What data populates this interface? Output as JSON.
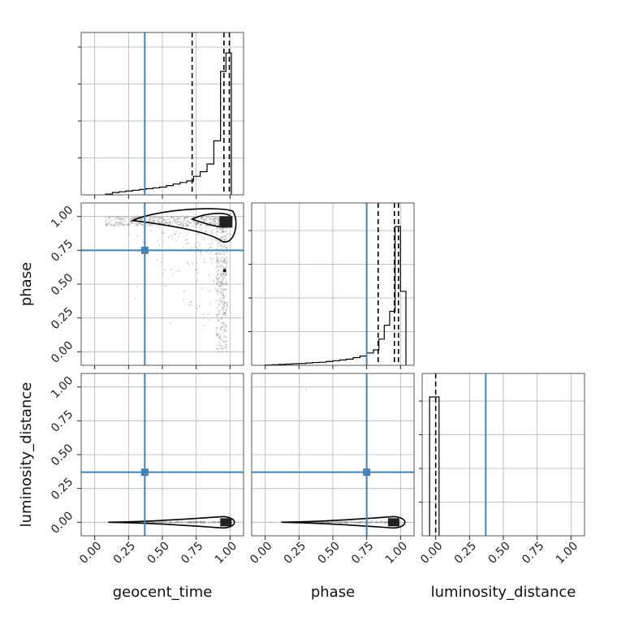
{
  "chart_data": {
    "type": "corner",
    "parameters": [
      "geocent_time",
      "phase",
      "luminosity_distance"
    ],
    "axis_range": [
      -0.1,
      1.1
    ],
    "tick_labels": [
      "0.00",
      "0.25",
      "0.50",
      "0.75",
      "1.00"
    ],
    "tick_values": [
      0,
      0.25,
      0.5,
      0.75,
      1.0
    ],
    "grid": true,
    "truth_color": "#4682b4",
    "hist_color": "#000000",
    "truths": {
      "geocent_time": 0.37,
      "phase": 0.75,
      "luminosity_distance": 0.37
    },
    "quantiles": {
      "geocent_time": [
        0.72,
        0.955,
        0.995
      ],
      "phase": [
        0.835,
        0.955,
        0.985
      ],
      "luminosity_distance": [
        0.0
      ]
    },
    "histograms": {
      "geocent_time": {
        "edges": [
          0.08,
          0.13,
          0.18,
          0.23,
          0.28,
          0.33,
          0.38,
          0.43,
          0.48,
          0.53,
          0.58,
          0.63,
          0.68,
          0.73,
          0.78,
          0.83,
          0.88,
          0.93,
          0.97,
          1.01
        ],
        "counts": [
          0.005,
          0.015,
          0.02,
          0.025,
          0.03,
          0.035,
          0.04,
          0.045,
          0.05,
          0.06,
          0.07,
          0.08,
          0.09,
          0.12,
          0.15,
          0.2,
          0.35,
          0.8,
          0.92
        ],
        "ymax": 1.0
      },
      "phase": {
        "edges": [
          0.0,
          0.05,
          0.1,
          0.15,
          0.2,
          0.25,
          0.3,
          0.35,
          0.4,
          0.45,
          0.5,
          0.55,
          0.6,
          0.65,
          0.7,
          0.75,
          0.8,
          0.84,
          0.88,
          0.92,
          0.96,
          1.0,
          1.04
        ],
        "counts": [
          0.002,
          0.004,
          0.006,
          0.008,
          0.01,
          0.012,
          0.015,
          0.018,
          0.02,
          0.025,
          0.03,
          0.035,
          0.04,
          0.05,
          0.06,
          0.08,
          0.1,
          0.17,
          0.26,
          0.35,
          0.9,
          0.48
        ],
        "ymax": 1.0
      },
      "luminosity_distance": {
        "edges": [
          -0.045,
          0.005,
          0.025
        ],
        "counts": [
          0.9,
          0.9
        ],
        "ymax": 1.0
      }
    },
    "contour_mode": {
      "geocent_time|phase": [
        0.97,
        0.96
      ],
      "geocent_time|luminosity_distance": [
        0.97,
        0.0
      ],
      "phase|luminosity_distance": [
        0.95,
        0.0
      ]
    },
    "xlabels": [
      "geocent_time",
      "phase",
      "luminosity_distance"
    ],
    "ylabels": [
      "phase",
      "luminosity_distance"
    ]
  }
}
